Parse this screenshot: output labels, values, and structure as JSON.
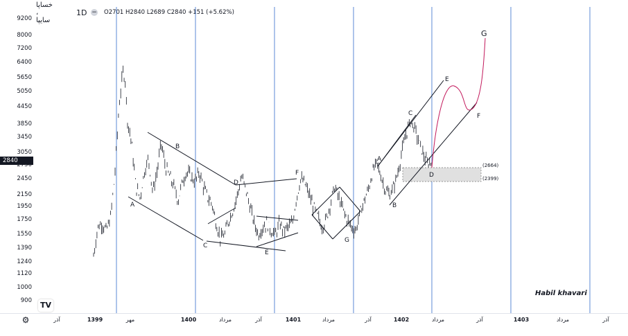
{
  "header": {
    "symbol": "خساپا ، سایپا",
    "interval": "1D",
    "minus_icon": "minus-icon",
    "ohlc": "O2701 H2840 L2689 C2840 +151 (+5.62%)"
  },
  "price_badge": "2840",
  "author": "Habil khavari",
  "logo_text": "TV",
  "settings_icon": "gear-icon",
  "chart_data": {
    "type": "candlestick",
    "yaxis_scale": "log",
    "yticks": [
      900,
      1000,
      1120,
      1240,
      1390,
      1550,
      1750,
      1950,
      2150,
      2450,
      2750,
      3050,
      3450,
      3850,
      4450,
      5050,
      5650,
      6400,
      7200,
      8000,
      9200
    ],
    "ylim": [
      820,
      10000
    ],
    "last_close": 2840,
    "xlabels": [
      {
        "text": "آذر",
        "bold": false
      },
      {
        "text": "1399",
        "bold": true
      },
      {
        "text": "مهر",
        "bold": false
      },
      {
        "text": "1400",
        "bold": true
      },
      {
        "text": "مرداد",
        "bold": false
      },
      {
        "text": "آذر",
        "bold": false
      },
      {
        "text": "1401",
        "bold": true
      },
      {
        "text": "مرداد",
        "bold": false
      },
      {
        "text": "آذر",
        "bold": false
      },
      {
        "text": "1402",
        "bold": true
      },
      {
        "text": "مرداد",
        "bold": false
      },
      {
        "text": "آذر",
        "bold": false
      },
      {
        "text": "1403",
        "bold": true
      },
      {
        "text": "مرداد",
        "bold": false
      },
      {
        "text": "آذر",
        "bold": false
      }
    ],
    "price_path": [
      [
        0,
        1300
      ],
      [
        2,
        1650
      ],
      [
        4,
        1700
      ],
      [
        6,
        1600
      ],
      [
        8,
        1780
      ],
      [
        10,
        2500
      ],
      [
        12,
        4400
      ],
      [
        13,
        5200
      ],
      [
        14,
        6000
      ],
      [
        15,
        5500
      ],
      [
        16,
        4000
      ],
      [
        18,
        3300
      ],
      [
        20,
        2300
      ],
      [
        22,
        2100
      ],
      [
        24,
        2600
      ],
      [
        26,
        2900
      ],
      [
        28,
        2200
      ],
      [
        30,
        2600
      ],
      [
        32,
        3300
      ],
      [
        34,
        2700
      ],
      [
        36,
        2500
      ],
      [
        38,
        2300
      ],
      [
        40,
        2050
      ],
      [
        42,
        2400
      ],
      [
        44,
        2600
      ],
      [
        46,
        2500
      ],
      [
        48,
        2400
      ],
      [
        50,
        2600
      ],
      [
        52,
        2300
      ],
      [
        54,
        2100
      ],
      [
        56,
        2000
      ],
      [
        58,
        1700
      ],
      [
        60,
        1500
      ],
      [
        62,
        1550
      ],
      [
        64,
        1750
      ],
      [
        66,
        1900
      ],
      [
        68,
        2150
      ],
      [
        70,
        2500
      ],
      [
        72,
        2250
      ],
      [
        74,
        1950
      ],
      [
        76,
        1700
      ],
      [
        78,
        1550
      ],
      [
        80,
        1650
      ],
      [
        82,
        1700
      ],
      [
        84,
        1600
      ],
      [
        86,
        1550
      ],
      [
        88,
        1700
      ],
      [
        90,
        1600
      ],
      [
        92,
        1650
      ],
      [
        94,
        1700
      ],
      [
        96,
        2100
      ],
      [
        98,
        2450
      ],
      [
        100,
        2350
      ],
      [
        102,
        2150
      ],
      [
        104,
        1950
      ],
      [
        106,
        1800
      ],
      [
        108,
        1650
      ],
      [
        110,
        1750
      ],
      [
        112,
        2000
      ],
      [
        114,
        2300
      ],
      [
        116,
        2100
      ],
      [
        118,
        1900
      ],
      [
        120,
        1750
      ],
      [
        122,
        1650
      ],
      [
        124,
        1600
      ],
      [
        126,
        1850
      ],
      [
        128,
        2050
      ],
      [
        130,
        2250
      ],
      [
        132,
        2600
      ],
      [
        134,
        2800
      ],
      [
        136,
        2500
      ],
      [
        138,
        2250
      ],
      [
        140,
        2150
      ],
      [
        142,
        2300
      ],
      [
        144,
        2600
      ],
      [
        146,
        3100
      ],
      [
        148,
        3600
      ],
      [
        150,
        3950
      ],
      [
        152,
        3700
      ],
      [
        154,
        3300
      ],
      [
        156,
        3000
      ],
      [
        158,
        2750
      ],
      [
        160,
        2840
      ]
    ],
    "drawings": {
      "labels": [
        "A",
        "B",
        "C",
        "D",
        "E",
        "F",
        "G",
        "A",
        "B",
        "C",
        "D",
        "E",
        "F",
        "G"
      ],
      "price_boxes": [
        "(2664)",
        "(2399)"
      ]
    }
  }
}
